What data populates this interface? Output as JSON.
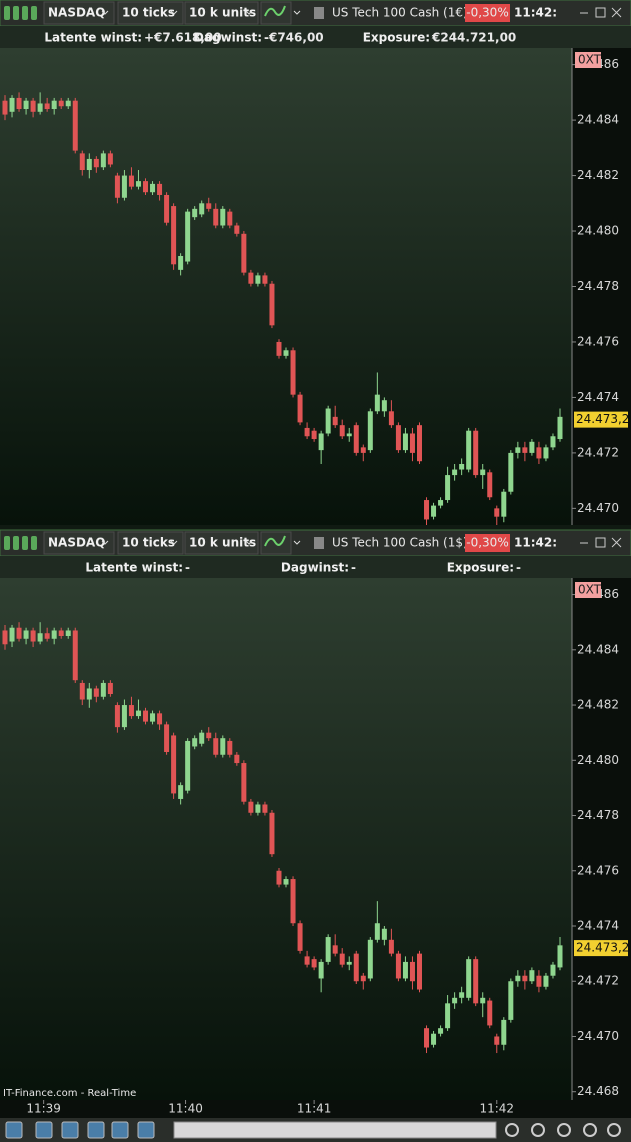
{
  "panes": [
    {
      "toolbar": {
        "symbol": "NASDAQ",
        "interval": "10 ticks",
        "size": "10 k units",
        "instrument": "US Tech 100 Cash (1€)",
        "change": "-0,30%",
        "time": "11:42:"
      },
      "info": [
        {
          "label": "Latente winst:",
          "value": "+€7.618,00",
          "color": "#4cd14c"
        },
        {
          "label": "Dagwinst:",
          "value": "-€746,00",
          "color": "#ff5a4a"
        },
        {
          "label": "Exposure:",
          "value": "€244.721,00",
          "color": "#f0f0f0"
        }
      ],
      "chart": {
        "type": "candlestick",
        "ylim": [
          24.4694,
          24.4866
        ],
        "yticks": [
          {
            "value": 24.486,
            "label": "24.486"
          },
          24.484,
          24.482,
          {
            "value": 24.48,
            "label": "24.480"
          },
          24.478,
          24.476,
          24.474,
          24.472,
          {
            "value": 24.47,
            "label": "24.470"
          }
        ],
        "tag": "0XT",
        "last_price": {
          "value": 24.4732,
          "label": "24.473,2"
        }
      }
    },
    {
      "toolbar": {
        "symbol": "NASDAQ",
        "interval": "10 ticks",
        "size": "10 k units",
        "instrument": "US Tech 100 Cash (1$)",
        "change": "-0,30%",
        "time": "11:42:"
      },
      "info": [
        {
          "label": "Latente winst:",
          "value": "-",
          "color": "#f0f0f0"
        },
        {
          "label": "Dagwinst:",
          "value": "-",
          "color": "#f0f0f0"
        },
        {
          "label": "Exposure:",
          "value": "-",
          "color": "#f0f0f0"
        }
      ],
      "chart": {
        "type": "candlestick",
        "ylim": [
          24.4677,
          24.4866
        ],
        "yticks": [
          {
            "value": 24.486,
            "label": "24.486"
          },
          24.484,
          24.482,
          {
            "value": 24.48,
            "label": "24.480"
          },
          24.478,
          24.476,
          24.474,
          24.472,
          {
            "value": 24.47,
            "label": "24.470"
          },
          24.468
        ],
        "tag": "0XT",
        "last_price": {
          "value": 24.4732,
          "label": "24.473,2"
        }
      }
    }
  ],
  "up_color": "#8fd68f",
  "down_color": "#e05555",
  "candles": [
    [
      24.4847,
      24.4849,
      24.484,
      24.4842
    ],
    [
      24.4843,
      24.4849,
      24.4841,
      24.4848
    ],
    [
      24.4848,
      24.485,
      24.4843,
      24.4844
    ],
    [
      24.4844,
      24.4848,
      24.4842,
      24.4847
    ],
    [
      24.4847,
      24.4848,
      24.4841,
      24.4843
    ],
    [
      24.4843,
      24.485,
      24.4842,
      24.4846
    ],
    [
      24.4846,
      24.4848,
      24.4843,
      24.4844
    ],
    [
      24.4844,
      24.4848,
      24.4842,
      24.4847
    ],
    [
      24.4847,
      24.4848,
      24.4844,
      24.4845
    ],
    [
      24.4845,
      24.4848,
      24.4844,
      24.4847
    ],
    [
      24.4847,
      24.4848,
      24.4828,
      24.4829
    ],
    [
      24.4828,
      24.4829,
      24.482,
      24.4822
    ],
    [
      24.4822,
      24.4828,
      24.4819,
      24.4826
    ],
    [
      24.4826,
      24.4827,
      24.4821,
      24.4823
    ],
    [
      24.4823,
      24.4829,
      24.4822,
      24.4828
    ],
    [
      24.4828,
      24.4829,
      24.4823,
      24.4824
    ],
    [
      24.482,
      24.4821,
      24.481,
      24.4812
    ],
    [
      24.4812,
      24.4822,
      24.4811,
      24.482
    ],
    [
      24.482,
      24.4823,
      24.4815,
      24.4816
    ],
    [
      24.4816,
      24.4822,
      24.4815,
      24.4818
    ],
    [
      24.4818,
      24.4819,
      24.4813,
      24.4814
    ],
    [
      24.4814,
      24.4818,
      24.4813,
      24.4817
    ],
    [
      24.4817,
      24.4818,
      24.4811,
      24.4813
    ],
    [
      24.4813,
      24.4814,
      24.4802,
      24.4803
    ],
    [
      24.4809,
      24.481,
      24.4786,
      24.4788
    ],
    [
      24.4786,
      24.4792,
      24.4784,
      24.4791
    ],
    [
      24.4789,
      24.4808,
      24.4788,
      24.4807
    ],
    [
      24.4805,
      24.4809,
      24.4804,
      24.4808
    ],
    [
      24.4806,
      24.4811,
      24.4805,
      24.481
    ],
    [
      24.481,
      24.4812,
      24.4807,
      24.4808
    ],
    [
      24.4808,
      24.481,
      24.4801,
      24.4802
    ],
    [
      24.4802,
      24.4809,
      24.4801,
      24.4808
    ],
    [
      24.4807,
      24.4808,
      24.4801,
      24.4802
    ],
    [
      24.4802,
      24.4803,
      24.4798,
      24.4799
    ],
    [
      24.4799,
      24.48,
      24.4784,
      24.4785
    ],
    [
      24.4785,
      24.4786,
      24.478,
      24.4781
    ],
    [
      24.4781,
      24.4785,
      24.478,
      24.4784
    ],
    [
      24.4784,
      24.4785,
      24.478,
      24.4781
    ],
    [
      24.4781,
      24.4782,
      24.4765,
      24.4766
    ],
    [
      24.476,
      24.4761,
      24.4754,
      24.4755
    ],
    [
      24.4755,
      24.4758,
      24.4754,
      24.4757
    ],
    [
      24.4757,
      24.4758,
      24.474,
      24.4741
    ],
    [
      24.4741,
      24.4742,
      24.473,
      24.4731
    ],
    [
      24.4729,
      24.4731,
      24.4725,
      24.4726
    ],
    [
      24.4728,
      24.4729,
      24.4724,
      24.4725
    ],
    [
      24.4721,
      24.4728,
      24.4716,
      24.4727
    ],
    [
      24.4727,
      24.4737,
      24.4726,
      24.4736
    ],
    [
      24.4733,
      24.4737,
      24.4729,
      24.473
    ],
    [
      24.473,
      24.4732,
      24.4725,
      24.4726
    ],
    [
      24.4726,
      24.4729,
      24.4724,
      24.4727
    ],
    [
      24.473,
      24.4731,
      24.4719,
      24.472
    ],
    [
      24.4722,
      24.4723,
      24.4717,
      24.472
    ],
    [
      24.4721,
      24.4736,
      24.472,
      24.4735
    ],
    [
      24.4735,
      24.4749,
      24.4734,
      24.4741
    ],
    [
      24.4735,
      24.474,
      24.4733,
      24.4739
    ],
    [
      24.4735,
      24.4739,
      24.4729,
      24.473
    ],
    [
      24.473,
      24.4731,
      24.472,
      24.4721
    ],
    [
      24.4721,
      24.4729,
      24.472,
      24.4727
    ],
    [
      24.4727,
      24.4729,
      24.4717,
      24.472
    ],
    [
      24.473,
      24.4731,
      24.4716,
      24.4717
    ],
    [
      24.4703,
      24.4704,
      24.4694,
      24.4696
    ],
    [
      24.4697,
      24.4702,
      24.4696,
      24.4701
    ],
    [
      24.4701,
      24.4704,
      24.47,
      24.4703
    ],
    [
      24.4703,
      24.4715,
      24.4702,
      24.4712
    ],
    [
      24.4712,
      24.4716,
      24.471,
      24.4714
    ],
    [
      24.4714,
      24.4718,
      24.4712,
      24.4716
    ],
    [
      24.4714,
      24.4729,
      24.4713,
      24.4728
    ],
    [
      24.4728,
      24.4729,
      24.4711,
      24.4712
    ],
    [
      24.4712,
      24.4716,
      24.4707,
      24.4714
    ],
    [
      24.4713,
      24.4714,
      24.4703,
      24.4704
    ],
    [
      24.47,
      24.4701,
      24.4694,
      24.4697
    ],
    [
      24.4697,
      24.4707,
      24.4695,
      24.4706
    ],
    [
      24.4706,
      24.4721,
      24.4705,
      24.472
    ],
    [
      24.472,
      24.4724,
      24.4718,
      24.4722
    ],
    [
      24.4722,
      24.4724,
      24.4717,
      24.472
    ],
    [
      24.472,
      24.4725,
      24.4719,
      24.4724
    ],
    [
      24.4722,
      24.4724,
      24.4716,
      24.4718
    ],
    [
      24.4718,
      24.4723,
      24.4717,
      24.4722
    ],
    [
      24.4722,
      24.4727,
      24.4721,
      24.4726
    ],
    [
      24.4725,
      24.4736,
      24.4724,
      24.4733
    ]
  ],
  "xticks": [
    {
      "value": 5.5,
      "label": "11:39"
    },
    {
      "value": 25.7,
      "label": "11:40"
    },
    {
      "value": 44,
      "label": "11:41"
    },
    {
      "value": 70,
      "label": "11:42"
    }
  ],
  "footer": "IT-Finance.com - Real-Time"
}
